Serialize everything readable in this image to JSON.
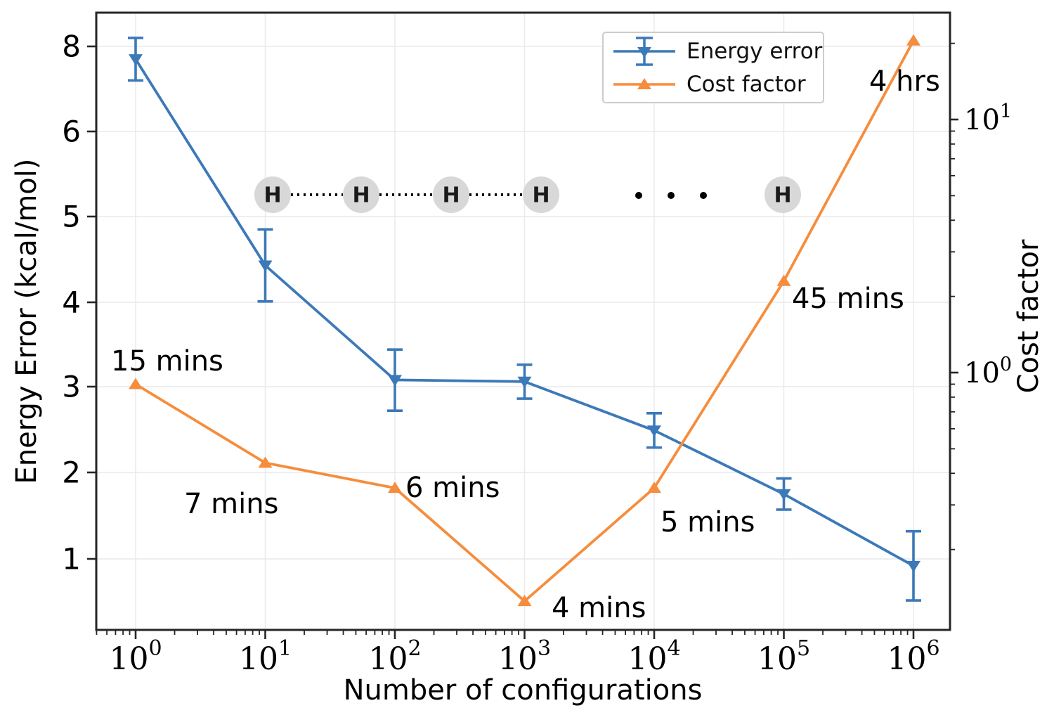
{
  "figure": {
    "x_axis_label": "Number of configurations",
    "y_left_label": "Energy Error (kcal/mol)",
    "y_right_label": "Cost factor"
  },
  "chart_data": {
    "type": "line",
    "x": {
      "scale": "log",
      "label": "Number of configurations",
      "values": [
        1,
        10,
        100,
        1000,
        10000,
        100000,
        1000000
      ],
      "tick_base": "10",
      "tick_exponents": [
        "0",
        "1",
        "2",
        "3",
        "4",
        "5",
        "6"
      ]
    },
    "y_left": {
      "label": "Energy Error (kcal/mol)",
      "tick_labels": [
        "8",
        "6",
        "5",
        "4",
        "3",
        "2",
        "1"
      ],
      "tick_values": [
        8,
        6,
        5,
        4,
        3,
        2,
        1
      ]
    },
    "y_right": {
      "label": "Cost factor",
      "scale": "log",
      "tick_base": "10",
      "tick_exponents": [
        "1",
        "0"
      ]
    },
    "series": [
      {
        "name": "Energy error",
        "axis": "left",
        "color": "#3c79b8",
        "marker": "triangle-down",
        "values": [
          7.7,
          4.43,
          3.08,
          3.06,
          2.49,
          1.75,
          0.92
        ],
        "error": [
          0.5,
          0.42,
          0.36,
          0.2,
          0.2,
          0.18,
          0.4
        ]
      },
      {
        "name": "Cost factor",
        "axis": "right",
        "color": "#f58d3d",
        "marker": "triangle-up",
        "values": [
          0.9,
          0.44,
          0.35,
          0.125,
          0.35,
          2.3,
          20.5
        ]
      }
    ],
    "annotations": [
      {
        "text": "15 mins",
        "point_index": 0
      },
      {
        "text": "7 mins",
        "point_index": 1
      },
      {
        "text": "6 mins",
        "point_index": 2
      },
      {
        "text": "4 mins",
        "point_index": 3
      },
      {
        "text": "5 mins",
        "point_index": 4
      },
      {
        "text": "45 mins",
        "point_index": 5
      },
      {
        "text": "4 hrs",
        "point_index": 6
      }
    ],
    "legend": {
      "position": "upper center"
    },
    "grid": true
  },
  "molecule": {
    "atom_label": "H",
    "atoms_shown": 5,
    "ellipsis_dots": 3
  },
  "colors": {
    "energy_error": "#3c79b8",
    "cost_factor": "#f58d3d",
    "grid": "#e8e8ee",
    "spine": "#262626",
    "atom_fill": "#d8d8d8",
    "text": "#000000"
  }
}
